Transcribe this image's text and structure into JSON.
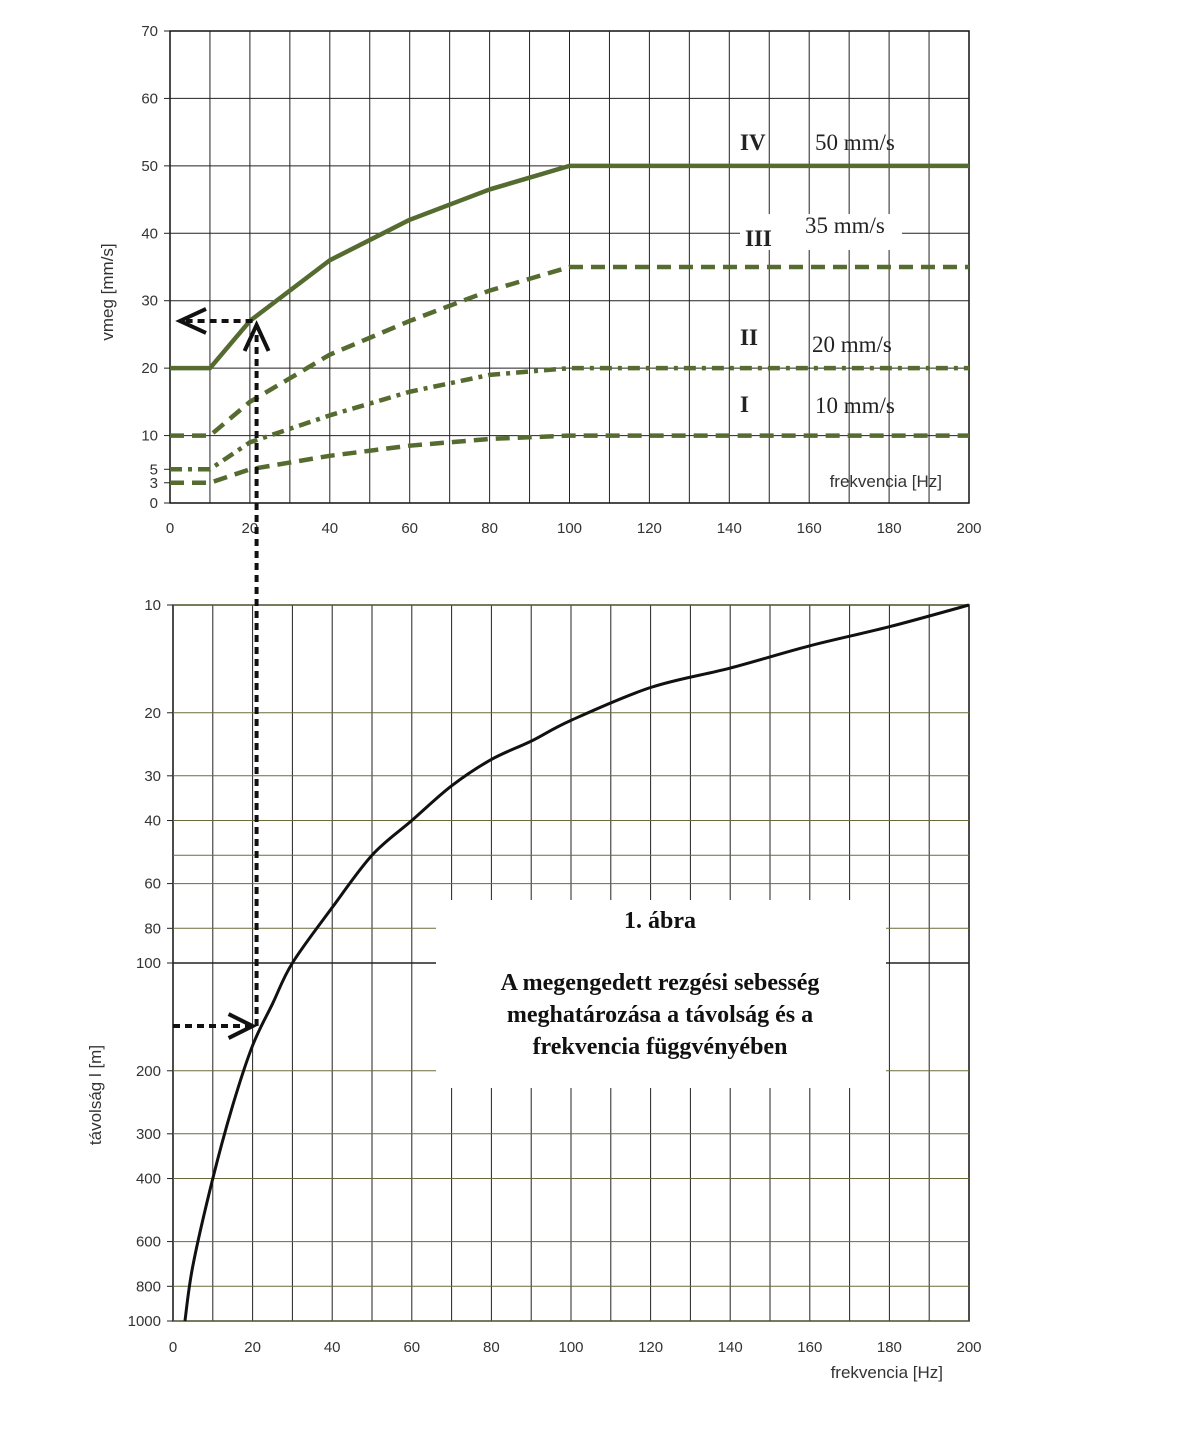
{
  "chart_data": [
    {
      "type": "line",
      "xlabel": "frekvencia [Hz]",
      "ylabel": "vmeg [mm/s]",
      "xlim": [
        0,
        200
      ],
      "ylim": [
        0,
        70
      ],
      "xticks": [
        0,
        20,
        40,
        60,
        80,
        100,
        120,
        140,
        160,
        180,
        200
      ],
      "yticks": [
        0,
        3,
        5,
        10,
        20,
        30,
        40,
        50,
        60,
        70
      ],
      "grid": true,
      "series": [
        {
          "name": "IV",
          "style": "solid",
          "color": "#556b2f",
          "x": [
            0,
            10,
            20,
            40,
            60,
            80,
            100,
            200
          ],
          "y": [
            20,
            20,
            27,
            36,
            42,
            46.5,
            50,
            50
          ]
        },
        {
          "name": "III",
          "style": "dashed",
          "color": "#556b2f",
          "x": [
            0,
            10,
            20,
            40,
            60,
            80,
            100,
            200
          ],
          "y": [
            10,
            10,
            15,
            22,
            27,
            31.5,
            35,
            35
          ]
        },
        {
          "name": "II",
          "style": "dash-dot",
          "color": "#556b2f",
          "x": [
            0,
            10,
            20,
            40,
            60,
            80,
            100,
            200
          ],
          "y": [
            5,
            5,
            9,
            13,
            16.5,
            19,
            20,
            20
          ]
        },
        {
          "name": "I",
          "style": "dashed",
          "color": "#556b2f",
          "x": [
            0,
            10,
            20,
            40,
            60,
            80,
            100,
            200
          ],
          "y": [
            3,
            3,
            5,
            7,
            8.5,
            9.5,
            10,
            10
          ]
        }
      ],
      "annotations": [
        {
          "label": "IV",
          "value": "50 mm/s"
        },
        {
          "label": "III",
          "value": "35 mm/s"
        },
        {
          "label": "II",
          "value": "20 mm/s"
        },
        {
          "label": "I",
          "value": "10 mm/s"
        }
      ],
      "guide": {
        "frequency": 21,
        "velocity": 27
      }
    },
    {
      "type": "line",
      "xlabel": "frekvencia [Hz]",
      "ylabel": "távolság l [m]",
      "xlim": [
        0,
        200
      ],
      "ylim": [
        10,
        1000
      ],
      "yscale": "log",
      "y_inverted": true,
      "xticks": [
        0,
        20,
        40,
        60,
        80,
        100,
        120,
        140,
        160,
        180,
        200
      ],
      "yticks": [
        10,
        20,
        30,
        40,
        60,
        80,
        100,
        200,
        300,
        400,
        600,
        800,
        1000
      ],
      "grid": true,
      "series": [
        {
          "style": "solid",
          "color": "#111111",
          "x": [
            3,
            5,
            10,
            15,
            20,
            25,
            30,
            40,
            50,
            60,
            70,
            80,
            90,
            100,
            120,
            140,
            160,
            180,
            200
          ],
          "y": [
            1000,
            700,
            400,
            250,
            170,
            130,
            100,
            70,
            50,
            40,
            32,
            27,
            24,
            21,
            17,
            15,
            13,
            11.5,
            10
          ]
        }
      ],
      "guide": {
        "distance": 150,
        "frequency": 21
      }
    }
  ],
  "caption": {
    "title": "1. ábra",
    "lines": [
      "A megengedett rezgési sebesség",
      "meghatározása a távolság és a",
      "frekvencia függvényében"
    ]
  }
}
